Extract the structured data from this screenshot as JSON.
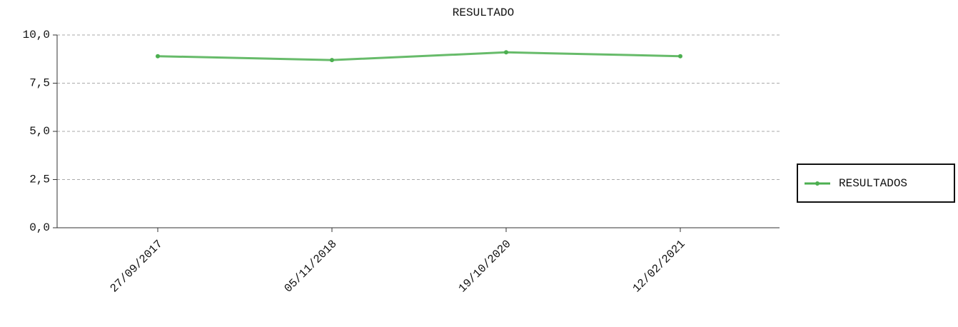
{
  "chart_data": {
    "type": "line",
    "title": "RESULTADO",
    "categories": [
      "27/09/2017",
      "05/11/2018",
      "19/10/2020",
      "12/02/2021"
    ],
    "series": [
      {
        "name": "RESULTADOS",
        "color": "#4caf50",
        "values": [
          8.9,
          8.7,
          9.1,
          8.9
        ]
      }
    ],
    "ylim": [
      0,
      10
    ],
    "yticks": [
      {
        "value": 0,
        "label": "0,0"
      },
      {
        "value": 2.5,
        "label": "2,5"
      },
      {
        "value": 5,
        "label": "5,0"
      },
      {
        "value": 7.5,
        "label": "7,5"
      },
      {
        "value": 10,
        "label": "10,0"
      }
    ],
    "grid": true,
    "legend": "right"
  }
}
